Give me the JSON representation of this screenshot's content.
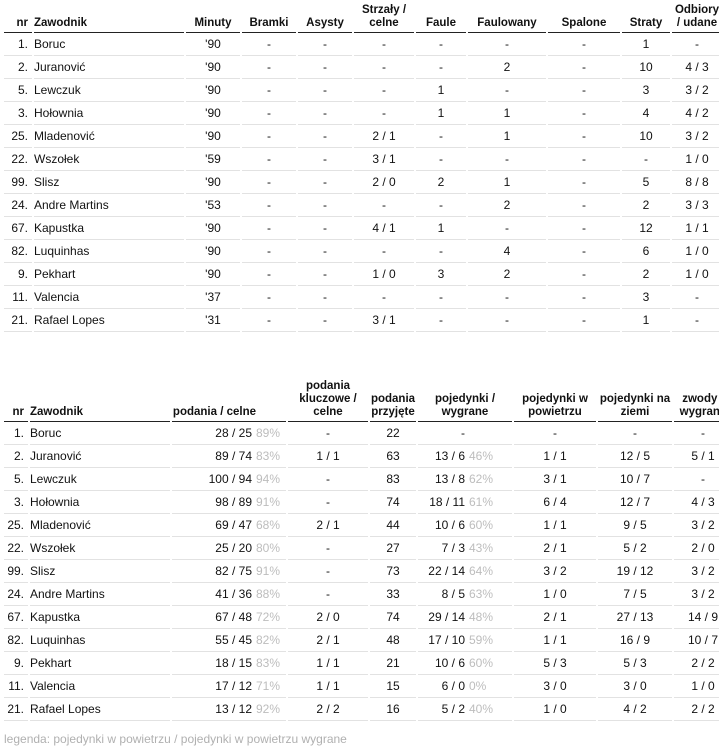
{
  "table1": {
    "headers": {
      "nr": "nr",
      "player": "Zawodnik",
      "minutes": "Minuty",
      "goals": "Bramki",
      "assists": "Asysty",
      "shots": "Strzały / celne",
      "fouls": "Faule",
      "fouled": "Faulowany",
      "offsides": "Spalone",
      "losses": "Straty",
      "recoveries": "Odbiory / udane"
    },
    "rows": [
      {
        "nr": "1.",
        "player": "Boruc",
        "minutes": "'90",
        "goals": "-",
        "assists": "-",
        "shots": "-",
        "fouls": "-",
        "fouled": "-",
        "offsides": "-",
        "losses": "1",
        "recoveries": "-"
      },
      {
        "nr": "2.",
        "player": "Juranović",
        "minutes": "'90",
        "goals": "-",
        "assists": "-",
        "shots": "-",
        "fouls": "-",
        "fouled": "2",
        "offsides": "-",
        "losses": "10",
        "recoveries": "4 / 3"
      },
      {
        "nr": "5.",
        "player": "Lewczuk",
        "minutes": "'90",
        "goals": "-",
        "assists": "-",
        "shots": "-",
        "fouls": "1",
        "fouled": "-",
        "offsides": "-",
        "losses": "3",
        "recoveries": "3 / 2"
      },
      {
        "nr": "3.",
        "player": "Hołownia",
        "minutes": "'90",
        "goals": "-",
        "assists": "-",
        "shots": "-",
        "fouls": "1",
        "fouled": "1",
        "offsides": "-",
        "losses": "4",
        "recoveries": "4 / 2"
      },
      {
        "nr": "25.",
        "player": "Mladenović",
        "minutes": "'90",
        "goals": "-",
        "assists": "-",
        "shots": "2 / 1",
        "fouls": "-",
        "fouled": "1",
        "offsides": "-",
        "losses": "10",
        "recoveries": "3 / 2"
      },
      {
        "nr": "22.",
        "player": "Wszołek",
        "minutes": "'59",
        "goals": "-",
        "assists": "-",
        "shots": "3 / 1",
        "fouls": "-",
        "fouled": "-",
        "offsides": "-",
        "losses": "-",
        "recoveries": "1 / 0"
      },
      {
        "nr": "99.",
        "player": "Slisz",
        "minutes": "'90",
        "goals": "-",
        "assists": "-",
        "shots": "2 / 0",
        "fouls": "2",
        "fouled": "1",
        "offsides": "-",
        "losses": "5",
        "recoveries": "8 / 8"
      },
      {
        "nr": "24.",
        "player": "Andre Martins",
        "minutes": "'53",
        "goals": "-",
        "assists": "-",
        "shots": "-",
        "fouls": "-",
        "fouled": "2",
        "offsides": "-",
        "losses": "2",
        "recoveries": "3 / 3"
      },
      {
        "nr": "67.",
        "player": "Kapustka",
        "minutes": "'90",
        "goals": "-",
        "assists": "-",
        "shots": "4 / 1",
        "fouls": "1",
        "fouled": "-",
        "offsides": "-",
        "losses": "12",
        "recoveries": "1 / 1"
      },
      {
        "nr": "82.",
        "player": "Luquinhas",
        "minutes": "'90",
        "goals": "-",
        "assists": "-",
        "shots": "-",
        "fouls": "-",
        "fouled": "4",
        "offsides": "-",
        "losses": "6",
        "recoveries": "1 / 0"
      },
      {
        "nr": "9.",
        "player": "Pekhart",
        "minutes": "'90",
        "goals": "-",
        "assists": "-",
        "shots": "1 / 0",
        "fouls": "3",
        "fouled": "2",
        "offsides": "-",
        "losses": "2",
        "recoveries": "1 / 0"
      },
      {
        "nr": "11.",
        "player": "Valencia",
        "minutes": "'37",
        "goals": "-",
        "assists": "-",
        "shots": "-",
        "fouls": "-",
        "fouled": "-",
        "offsides": "-",
        "losses": "3",
        "recoveries": "-"
      },
      {
        "nr": "21.",
        "player": "Rafael Lopes",
        "minutes": "'31",
        "goals": "-",
        "assists": "-",
        "shots": "3 / 1",
        "fouls": "-",
        "fouled": "-",
        "offsides": "-",
        "losses": "1",
        "recoveries": "-"
      }
    ]
  },
  "table2": {
    "headers": {
      "nr": "nr",
      "player": "Zawodnik",
      "passes": "podania / celne",
      "key_passes": "podania kluczowe / celne",
      "received": "podania przyjęte",
      "duels": "pojedynki / wygrane",
      "aerial": "pojedynki w powietrzu",
      "ground": "pojedynki na ziemi",
      "challenges": "zwody / wygrane"
    },
    "rows": [
      {
        "nr": "1.",
        "player": "Boruc",
        "passes": "28 / 25",
        "passes_pct": "89%",
        "key_passes": "-",
        "received": "22",
        "duels": "-",
        "duels_pct": "",
        "aerial": "-",
        "ground": "-",
        "challenges": "-"
      },
      {
        "nr": "2.",
        "player": "Juranović",
        "passes": "89 / 74",
        "passes_pct": "83%",
        "key_passes": "1 / 1",
        "received": "63",
        "duels": "13 / 6",
        "duels_pct": "46%",
        "aerial": "1 / 1",
        "ground": "12 / 5",
        "challenges": "5 / 1"
      },
      {
        "nr": "5.",
        "player": "Lewczuk",
        "passes": "100 / 94",
        "passes_pct": "94%",
        "key_passes": "-",
        "received": "83",
        "duels": "13 / 8",
        "duels_pct": "62%",
        "aerial": "3 / 1",
        "ground": "10 / 7",
        "challenges": "-"
      },
      {
        "nr": "3.",
        "player": "Hołownia",
        "passes": "98 / 89",
        "passes_pct": "91%",
        "key_passes": "-",
        "received": "74",
        "duels": "18 / 11",
        "duels_pct": "61%",
        "aerial": "6 / 4",
        "ground": "12 / 7",
        "challenges": "4 / 3"
      },
      {
        "nr": "25.",
        "player": "Mladenović",
        "passes": "69 / 47",
        "passes_pct": "68%",
        "key_passes": "2 / 1",
        "received": "44",
        "duels": "10 / 6",
        "duels_pct": "60%",
        "aerial": "1 / 1",
        "ground": "9 / 5",
        "challenges": "3 / 2"
      },
      {
        "nr": "22.",
        "player": "Wszołek",
        "passes": "25 / 20",
        "passes_pct": "80%",
        "key_passes": "-",
        "received": "27",
        "duels": "7 / 3",
        "duels_pct": "43%",
        "aerial": "2 / 1",
        "ground": "5 / 2",
        "challenges": "2 / 0"
      },
      {
        "nr": "99.",
        "player": "Slisz",
        "passes": "82 / 75",
        "passes_pct": "91%",
        "key_passes": "-",
        "received": "73",
        "duels": "22 / 14",
        "duels_pct": "64%",
        "aerial": "3 / 2",
        "ground": "19 / 12",
        "challenges": "3 / 2"
      },
      {
        "nr": "24.",
        "player": "Andre Martins",
        "passes": "41 / 36",
        "passes_pct": "88%",
        "key_passes": "-",
        "received": "33",
        "duels": "8 / 5",
        "duels_pct": "63%",
        "aerial": "1 / 0",
        "ground": "7 / 5",
        "challenges": "3 / 2"
      },
      {
        "nr": "67.",
        "player": "Kapustka",
        "passes": "67 / 48",
        "passes_pct": "72%",
        "key_passes": "2 / 0",
        "received": "74",
        "duels": "29 / 14",
        "duels_pct": "48%",
        "aerial": "2 / 1",
        "ground": "27 / 13",
        "challenges": "14 / 9"
      },
      {
        "nr": "82.",
        "player": "Luquinhas",
        "passes": "55 / 45",
        "passes_pct": "82%",
        "key_passes": "2 / 1",
        "received": "48",
        "duels": "17 / 10",
        "duels_pct": "59%",
        "aerial": "1 / 1",
        "ground": "16 / 9",
        "challenges": "10 / 7"
      },
      {
        "nr": "9.",
        "player": "Pekhart",
        "passes": "18 / 15",
        "passes_pct": "83%",
        "key_passes": "1 / 1",
        "received": "21",
        "duels": "10 / 6",
        "duels_pct": "60%",
        "aerial": "5 / 3",
        "ground": "5 / 3",
        "challenges": "2 / 2"
      },
      {
        "nr": "11.",
        "player": "Valencia",
        "passes": "17 / 12",
        "passes_pct": "71%",
        "key_passes": "1 / 1",
        "received": "15",
        "duels": "6 / 0",
        "duels_pct": "0%",
        "aerial": "3 / 0",
        "ground": "3 / 0",
        "challenges": "1 / 0"
      },
      {
        "nr": "21.",
        "player": "Rafael Lopes",
        "passes": "13 / 12",
        "passes_pct": "92%",
        "key_passes": "2 / 2",
        "received": "16",
        "duels": "5 / 2",
        "duels_pct": "40%",
        "aerial": "1 / 0",
        "ground": "4 / 2",
        "challenges": "2 / 2"
      }
    ]
  },
  "legend": "legenda: pojedynki w powietrzu / pojedynki w powietrzu wygrane"
}
